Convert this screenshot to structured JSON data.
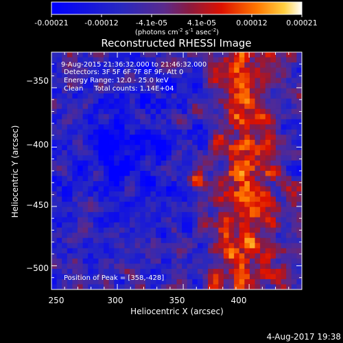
{
  "colorbar": {
    "tick_labels": [
      "-0.00021",
      "-0.00012",
      "-4.1e-05",
      "4.1e-05",
      "0.00012",
      "0.00021"
    ],
    "units_prefix": "(photons cm",
    "units_exp1": "-2",
    "units_mid": " s",
    "units_exp2": "-1",
    "units_mid2": " asec",
    "units_exp3": "-2",
    "units_suffix": ")",
    "range": [
      -0.00021,
      0.00021
    ]
  },
  "chart_data": {
    "type": "heatmap",
    "title": "Reconstructed RHESSI Image",
    "xlabel": "Heliocentric X (arcsec)",
    "ylabel": "Heliocentric Y (arcsec)",
    "xlim": [
      250,
      440
    ],
    "ylim": [
      -520,
      -320
    ],
    "x_ticks": [
      250,
      300,
      350,
      400
    ],
    "y_ticks": [
      -350,
      -400,
      -450,
      -500
    ],
    "x_tick_labels": [
      "250",
      "300",
      "350",
      "400"
    ],
    "y_tick_labels": [
      "−350",
      "−400",
      "−450",
      "−500"
    ],
    "annotations": [
      "9-Aug-2015 21:36:32.000 to 21:46:32.000",
      "Detectors: 3F 5F 6F 7F 8F 9F, Att 0",
      "Energy Range: 12.0 - 25.0 keV",
      "Clean     Total counts: 1.14E+04"
    ],
    "peak_label": "Position of Peak = [358,-428]",
    "peak_position": [
      358,
      -428
    ],
    "colormap": "blue-purple-red-yellow-white"
  },
  "footer": {
    "timestamp": "4-Aug-2017 19:38"
  }
}
